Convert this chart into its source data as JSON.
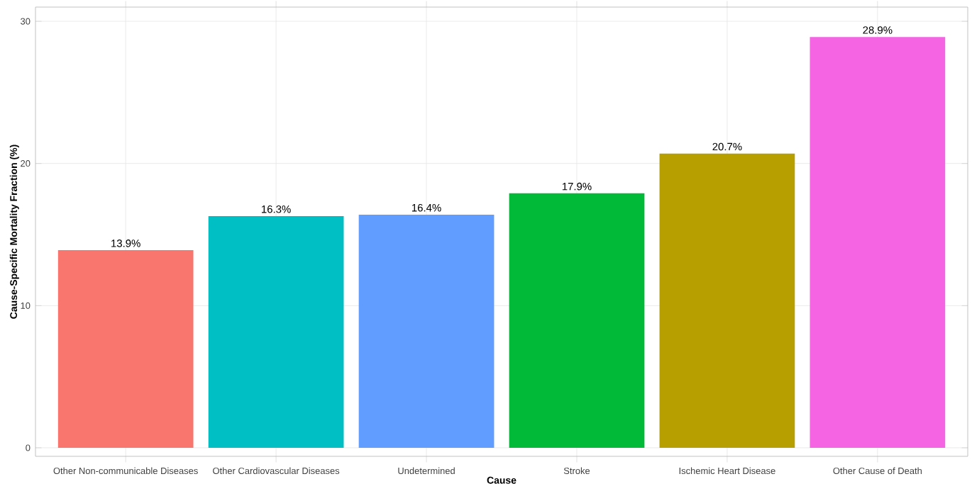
{
  "chart_data": {
    "type": "bar",
    "xlabel": "Cause",
    "ylabel": "Cause-Specific Mortality Fraction (%)",
    "categories": [
      "Other Non-communicable Diseases",
      "Other Cardiovascular Diseases",
      "Undetermined",
      "Stroke",
      "Ischemic Heart Disease",
      "Other Cause of Death"
    ],
    "values": [
      13.9,
      16.3,
      16.4,
      17.9,
      20.7,
      28.9
    ],
    "colors": [
      "#f8766d",
      "#00bfc4",
      "#619cff",
      "#00ba38",
      "#b79f00",
      "#f564e3"
    ],
    "value_labels": [
      "13.9%",
      "16.3%",
      "16.4%",
      "17.9%",
      "20.7%",
      "28.9%"
    ],
    "ylim": [
      -0.6,
      31
    ],
    "yticks": [
      0,
      10,
      20,
      30
    ],
    "grid": true
  }
}
